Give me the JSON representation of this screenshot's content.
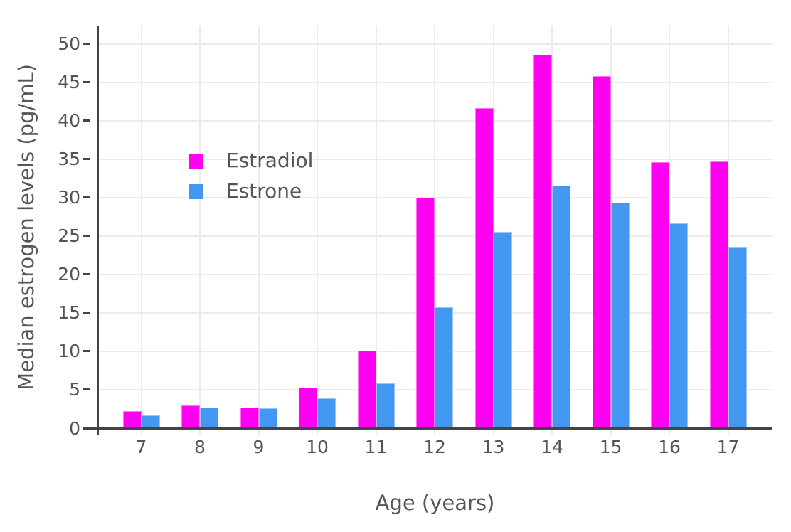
{
  "chart_data": {
    "type": "bar",
    "title": "",
    "xlabel": "Age (years)",
    "ylabel": "Median estrogen levels (pg/mL)",
    "categories": [
      7,
      8,
      9,
      10,
      11,
      12,
      13,
      14,
      15,
      16,
      17
    ],
    "series": [
      {
        "name": "Estradiol",
        "color": "#FF00F0",
        "values": [
          2.2,
          3.0,
          2.7,
          5.3,
          10.1,
          30.0,
          41.6,
          48.6,
          45.8,
          34.6,
          34.7
        ]
      },
      {
        "name": "Estrone",
        "color": "#4298F0",
        "values": [
          1.7,
          2.7,
          2.6,
          3.9,
          5.8,
          15.7,
          25.5,
          31.5,
          29.3,
          26.6,
          23.6
        ]
      }
    ],
    "ylim": [
      0,
      50
    ],
    "ytick_step": 5,
    "ytick_labels": [
      "0",
      "5",
      "10",
      "15",
      "20",
      "25",
      "30",
      "35",
      "40",
      "45",
      "50"
    ],
    "grid": true,
    "legend": {
      "position": "inside-upper-left",
      "entries": [
        "Estradiol",
        "Estrone"
      ]
    }
  },
  "colors": {
    "background": "#FFFFFF",
    "grid": "#ECECEC",
    "axis": "#444444",
    "text": "#555555",
    "estradiol": "#FF00F0",
    "estrone": "#4298F0"
  }
}
